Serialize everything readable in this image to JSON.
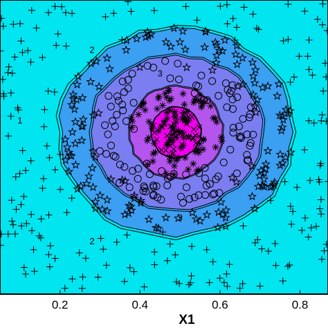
{
  "chart_data": {
    "type": "scatter",
    "title": "",
    "xlabel": "X1",
    "ylabel": "",
    "xlim": [
      0.05,
      0.87
    ],
    "ylim": [
      0.0,
      1.0
    ],
    "xticks": [
      "0.2",
      "0.4",
      "0.6",
      "0.8"
    ],
    "xtick_values": [
      0.2,
      0.4,
      0.6,
      0.8
    ],
    "grid": false,
    "legend": "none",
    "center": [
      0.49,
      0.55
    ],
    "contour_levels": [
      {
        "level_label": "1",
        "radius_x": 0.29,
        "radius_y": 0.35,
        "color": "#3b9ff2"
      },
      {
        "level_label": "2",
        "radius_x": 0.215,
        "radius_y": 0.26,
        "color": "#7a7ef0"
      },
      {
        "level_label": "3",
        "radius_x": 0.115,
        "radius_y": 0.155,
        "color": "#b455ee"
      },
      {
        "level_label": "",
        "radius_x": 0.062,
        "radius_y": 0.085,
        "color": "#f000ee"
      }
    ],
    "contour_labels": [
      {
        "text": "2",
        "x": 0.28,
        "y": 0.82
      },
      {
        "text": "3",
        "x": 0.45,
        "y": 0.74
      },
      {
        "text": "3",
        "x": 0.5,
        "y": 0.25
      },
      {
        "text": "2",
        "x": 0.28,
        "y": 0.17
      },
      {
        "text": "1",
        "x": 0.1,
        "y": 0.58
      }
    ],
    "background_color": "#00e5f0",
    "series": [
      {
        "marker": "plus",
        "count": 190,
        "r_min": 0.95,
        "r_max": 1.9,
        "jitter": 0.0
      },
      {
        "marker": "star",
        "count": 150,
        "r_min": 0.62,
        "r_max": 1.02,
        "jitter": 0.0
      },
      {
        "marker": "circle",
        "count": 110,
        "r_min": 0.35,
        "r_max": 0.7,
        "jitter": 0.0
      },
      {
        "marker": "asterisk",
        "count": 100,
        "r_min": 0.0,
        "r_max": 0.42,
        "jitter": 0.0
      },
      {
        "marker": "cross",
        "count": 40,
        "r_min": 0.0,
        "r_max": 0.22,
        "jitter": 0.0
      }
    ]
  }
}
